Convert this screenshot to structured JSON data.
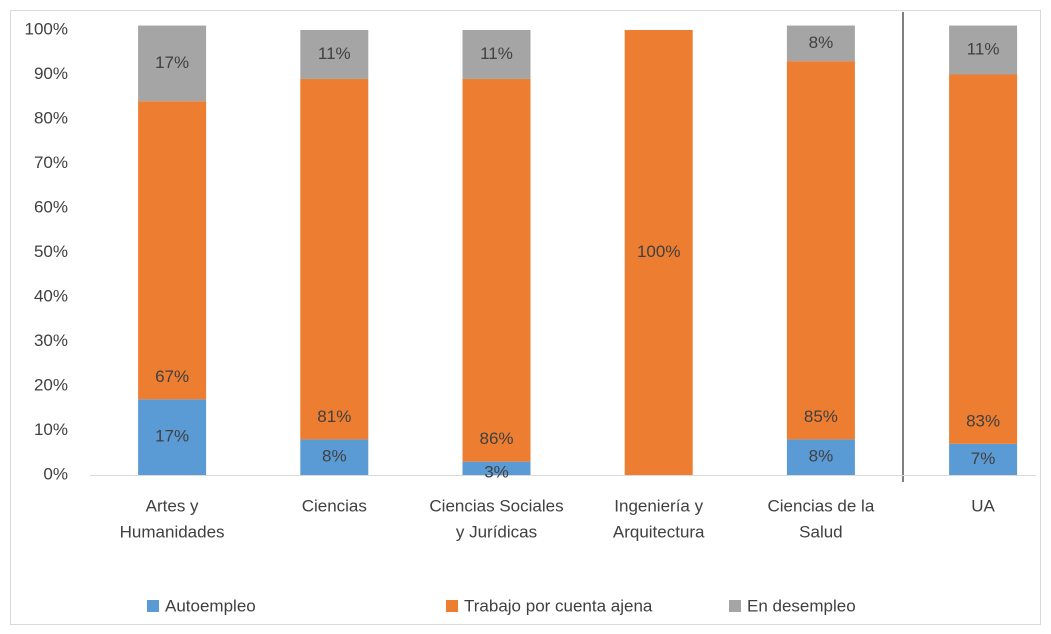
{
  "chart_data": {
    "type": "bar",
    "stacked": true,
    "categories": [
      [
        "Artes y",
        "Humanidades"
      ],
      [
        "Ciencias"
      ],
      [
        "Ciencias Sociales",
        "y Jurídicas"
      ],
      [
        "Ingeniería y",
        "Arquitectura"
      ],
      [
        "Ciencias de la",
        "Salud"
      ],
      [
        "UA"
      ]
    ],
    "series": [
      {
        "name": "Autoempleo",
        "color": "#5b9bd5",
        "values": [
          17,
          8,
          3,
          0,
          8,
          7
        ],
        "value_labels": [
          "17%",
          "8%",
          "3%",
          null,
          "8%",
          "7%"
        ]
      },
      {
        "name": "Trabajo por cuenta ajena",
        "color": "#ed7d31",
        "values": [
          67,
          81,
          86,
          100,
          85,
          83
        ],
        "value_labels": [
          "67%",
          "81%",
          "86%",
          "100%",
          "85%",
          "83%"
        ]
      },
      {
        "name": "En desempleo",
        "color": "#a5a5a5",
        "values": [
          17,
          11,
          11,
          0,
          8,
          11
        ],
        "value_labels": [
          "17%",
          "11%",
          "11%",
          null,
          "8%",
          "11%"
        ]
      }
    ],
    "ylim": [
      0,
      100
    ],
    "yticks": [
      {
        "value": 0,
        "label": "0%"
      },
      {
        "value": 10,
        "label": "10%"
      },
      {
        "value": 20,
        "label": "20%"
      },
      {
        "value": 30,
        "label": "30%"
      },
      {
        "value": 40,
        "label": "40%"
      },
      {
        "value": 50,
        "label": "50%"
      },
      {
        "value": 60,
        "label": "60%"
      },
      {
        "value": 70,
        "label": "70%"
      },
      {
        "value": 80,
        "label": "80%"
      },
      {
        "value": 90,
        "label": "90%"
      },
      {
        "value": 100,
        "label": "100%"
      }
    ],
    "legend": "bottom"
  }
}
